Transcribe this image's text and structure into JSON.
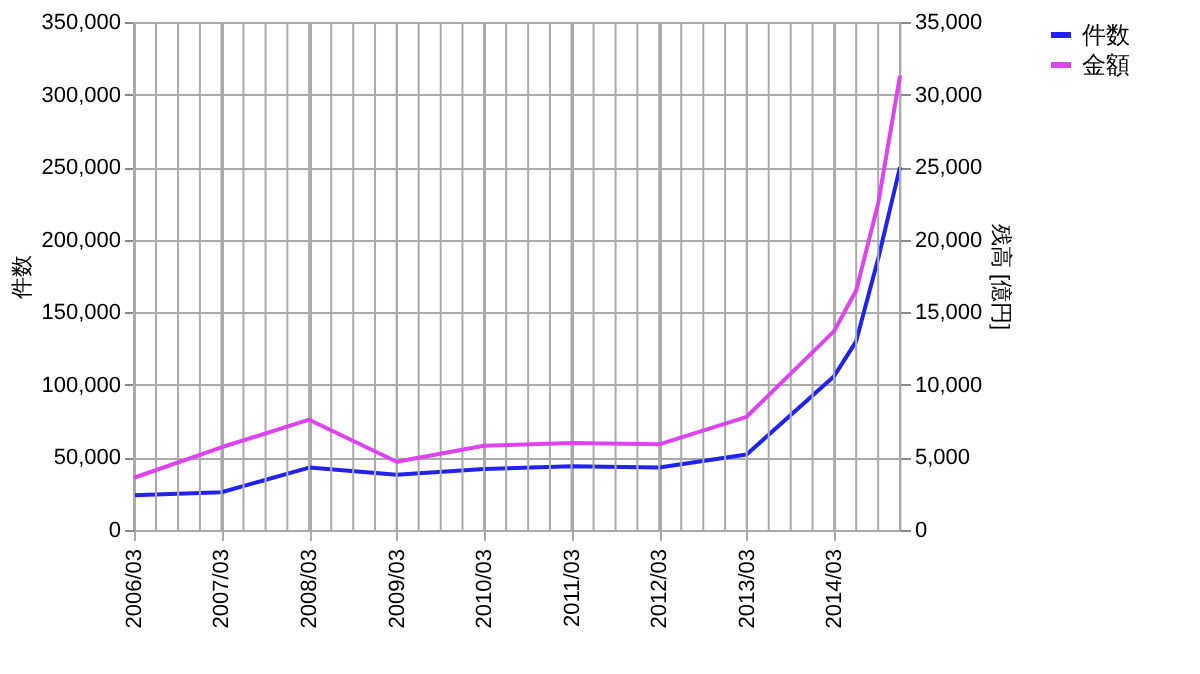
{
  "chart_data": {
    "type": "line",
    "ylabel": "件数",
    "y2label": "残高 [億円]",
    "x": [
      "2006-03",
      "2007-03",
      "2008-03",
      "2009-03",
      "2010-03",
      "2011-03",
      "2012-03",
      "2013-03",
      "2014-03",
      "2014-06",
      "2014-09",
      "2014-12"
    ],
    "series": [
      {
        "name": "件数",
        "color": "#2222ee",
        "values": [
          24000,
          26000,
          43000,
          38000,
          42000,
          44000,
          43000,
          52000,
          106000,
          130000,
          187000,
          250000
        ]
      },
      {
        "name": "金額",
        "color": "#dd44ee",
        "axis": "y2",
        "values": [
          3600,
          5700,
          7600,
          4700,
          5800,
          6000,
          5900,
          7800,
          13700,
          16500,
          22500,
          31300
        ]
      }
    ],
    "xlim": [
      "2006-03",
      "2014-12"
    ],
    "xticks": [
      {
        "value": "2006-03",
        "label": "2006/03"
      },
      {
        "value": "2006-06",
        "label": null
      },
      {
        "value": "2006-09",
        "label": null
      },
      {
        "value": "2006-12",
        "label": null
      },
      {
        "value": "2007-03",
        "label": "2007/03"
      },
      {
        "value": "2007-06",
        "label": null
      },
      {
        "value": "2007-09",
        "label": null
      },
      {
        "value": "2007-12",
        "label": null
      },
      {
        "value": "2008-03",
        "label": "2008/03"
      },
      {
        "value": "2008-06",
        "label": null
      },
      {
        "value": "2008-09",
        "label": null
      },
      {
        "value": "2008-12",
        "label": null
      },
      {
        "value": "2009-03",
        "label": "2009/03"
      },
      {
        "value": "2009-06",
        "label": null
      },
      {
        "value": "2009-09",
        "label": null
      },
      {
        "value": "2009-12",
        "label": null
      },
      {
        "value": "2010-03",
        "label": "2010/03"
      },
      {
        "value": "2010-06",
        "label": null
      },
      {
        "value": "2010-09",
        "label": null
      },
      {
        "value": "2010-12",
        "label": null
      },
      {
        "value": "2011-03",
        "label": "2011/03"
      },
      {
        "value": "2011-06",
        "label": null
      },
      {
        "value": "2011-09",
        "label": null
      },
      {
        "value": "2011-12",
        "label": null
      },
      {
        "value": "2012-03",
        "label": "2012/03"
      },
      {
        "value": "2012-06",
        "label": null
      },
      {
        "value": "2012-09",
        "label": null
      },
      {
        "value": "2012-12",
        "label": null
      },
      {
        "value": "2013-03",
        "label": "2013/03"
      },
      {
        "value": "2013-06",
        "label": null
      },
      {
        "value": "2013-09",
        "label": null
      },
      {
        "value": "2013-12",
        "label": null
      },
      {
        "value": "2014-03",
        "label": "2014/03"
      },
      {
        "value": "2014-06",
        "label": null
      },
      {
        "value": "2014-09",
        "label": null
      },
      {
        "value": "2014-12",
        "label": null
      }
    ],
    "ylim": [
      0,
      350000
    ],
    "yticks": [
      0,
      {
        "value": 50000,
        "label": "50,000"
      },
      {
        "value": 100000,
        "label": "100,000"
      },
      {
        "value": 150000,
        "label": "150,000"
      },
      {
        "value": 200000,
        "label": "200,000"
      },
      {
        "value": 250000,
        "label": "250,000"
      },
      {
        "value": 300000,
        "label": "300,000"
      },
      {
        "value": 350000,
        "label": "350,000"
      }
    ],
    "y2lim": [
      0,
      35000
    ],
    "y2ticks": [
      0,
      {
        "value": 5000,
        "label": "5,000"
      },
      {
        "value": 10000,
        "label": "10,000"
      },
      {
        "value": 15000,
        "label": "15,000"
      },
      {
        "value": 20000,
        "label": "20,000"
      },
      {
        "value": 25000,
        "label": "25,000"
      },
      {
        "value": 30000,
        "label": "30,000"
      },
      {
        "value": 35000,
        "label": "35,000"
      }
    ],
    "grid": true,
    "legend": "right",
    "marker": "none",
    "line_style": "solid"
  }
}
